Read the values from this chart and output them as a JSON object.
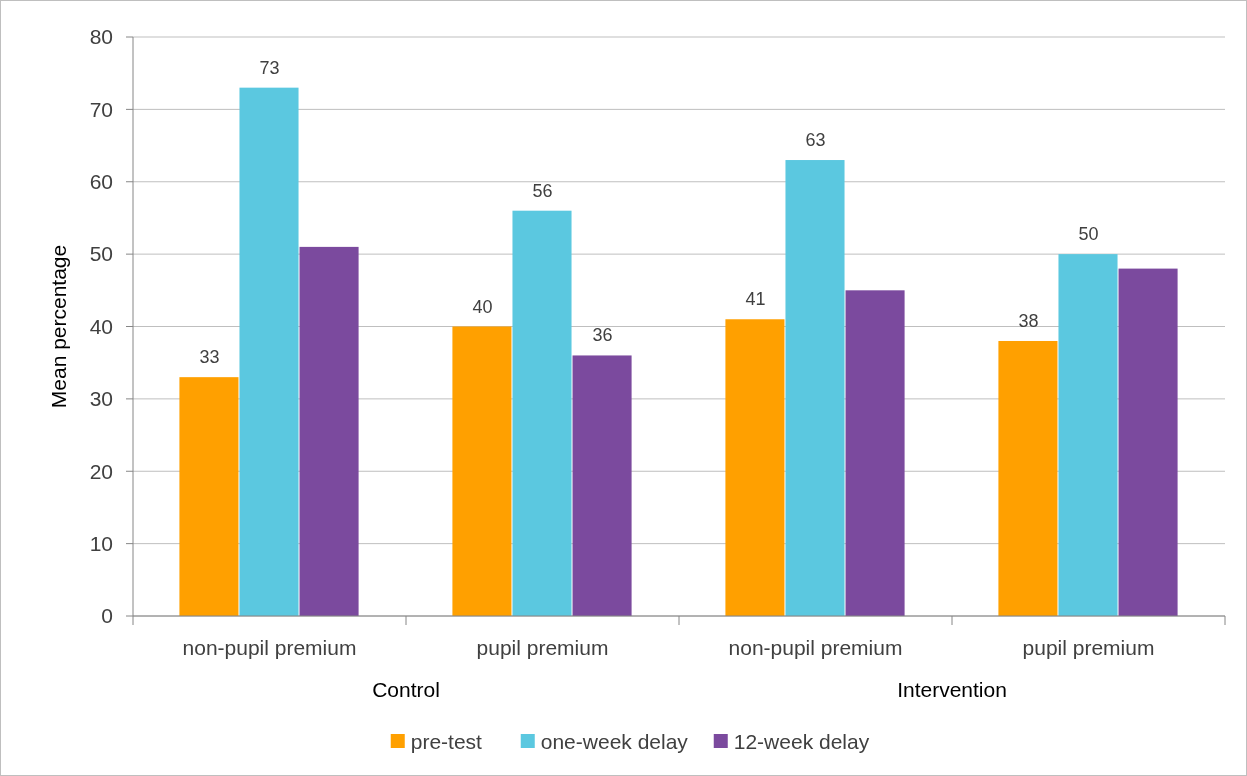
{
  "chart_data": {
    "type": "bar",
    "ylabel": "Mean percentage",
    "categories": [
      "non-pupil premium",
      "pupil premium",
      "non-pupil premium",
      "pupil premium"
    ],
    "annotations": [
      "Control",
      "Intervention"
    ],
    "series": [
      {
        "name": "pre-test",
        "color": "#ffa000",
        "values": [
          33,
          40,
          41,
          38
        ],
        "value_labels": [
          "33",
          "40",
          "41",
          "38"
        ]
      },
      {
        "name": "one-week delay",
        "color": "#5bc8e0",
        "values": [
          73,
          56,
          63,
          50
        ],
        "value_labels": [
          "73",
          "56",
          "63",
          "50"
        ]
      },
      {
        "name": "12-week delay",
        "color": "#7b4a9e",
        "values": [
          51,
          36,
          45,
          48
        ],
        "value_labels": [
          null,
          "36",
          null,
          null
        ]
      }
    ],
    "ylim": [
      0,
      80
    ],
    "yticks": [
      0,
      10,
      20,
      30,
      40,
      50,
      60,
      70,
      80
    ],
    "grid": "y",
    "legend": "bottom"
  }
}
